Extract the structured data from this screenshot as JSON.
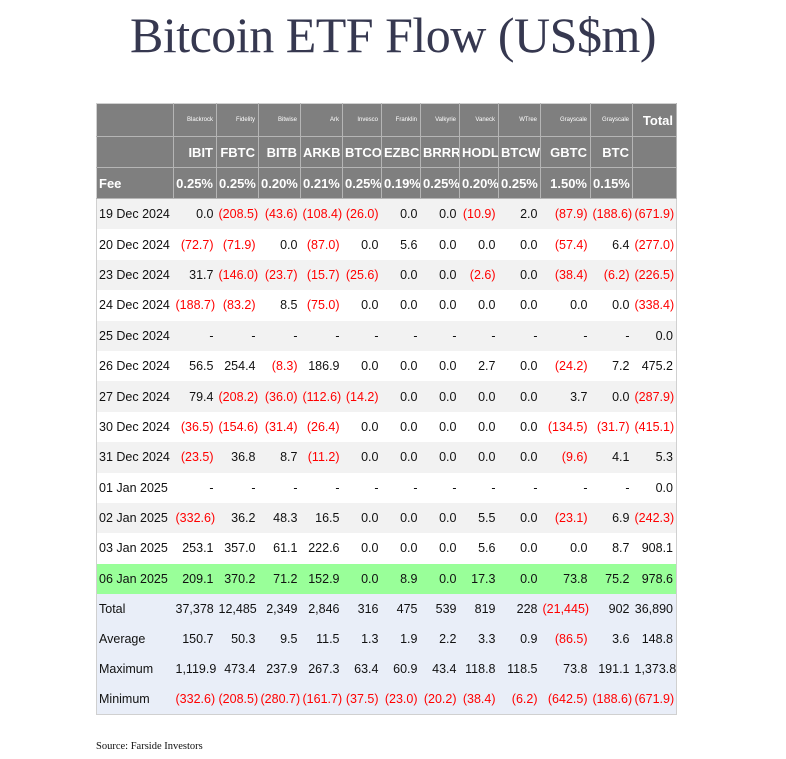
{
  "title": "Bitcoin ETF Flow (US$m)",
  "source": "Source: Farside Investors",
  "table": {
    "issuers": [
      "",
      "Blackrock",
      "Fidelity",
      "Bitwise",
      "Ark",
      "Invesco",
      "Franklin",
      "Valkyrie",
      "Vaneck",
      "WTree",
      "Grayscale",
      "Grayscale",
      "Total"
    ],
    "tickers": [
      "",
      "IBIT",
      "FBTC",
      "BITB",
      "ARKB",
      "BTCO",
      "EZBC",
      "BRRR",
      "HODL",
      "BTCW",
      "GBTC",
      "BTC",
      ""
    ],
    "fees": [
      "Fee",
      "0.25%",
      "0.25%",
      "0.20%",
      "0.21%",
      "0.25%",
      "0.19%",
      "0.25%",
      "0.20%",
      "0.25%",
      "1.50%",
      "0.15%",
      ""
    ],
    "rows": [
      [
        "19 Dec 2024",
        "0.0",
        "(208.5)",
        "(43.6)",
        "(108.4)",
        "(26.0)",
        "0.0",
        "0.0",
        "(10.9)",
        "2.0",
        "(87.9)",
        "(188.6)",
        "(671.9)"
      ],
      [
        "20 Dec 2024",
        "(72.7)",
        "(71.9)",
        "0.0",
        "(87.0)",
        "0.0",
        "5.6",
        "0.0",
        "0.0",
        "0.0",
        "(57.4)",
        "6.4",
        "(277.0)"
      ],
      [
        "23 Dec 2024",
        "31.7",
        "(146.0)",
        "(23.7)",
        "(15.7)",
        "(25.6)",
        "0.0",
        "0.0",
        "(2.6)",
        "0.0",
        "(38.4)",
        "(6.2)",
        "(226.5)"
      ],
      [
        "24 Dec 2024",
        "(188.7)",
        "(83.2)",
        "8.5",
        "(75.0)",
        "0.0",
        "0.0",
        "0.0",
        "0.0",
        "0.0",
        "0.0",
        "0.0",
        "(338.4)"
      ],
      [
        "25 Dec 2024",
        "-",
        "-",
        "-",
        "-",
        "-",
        "-",
        "-",
        "-",
        "-",
        "-",
        "-",
        "0.0"
      ],
      [
        "26 Dec 2024",
        "56.5",
        "254.4",
        "(8.3)",
        "186.9",
        "0.0",
        "0.0",
        "0.0",
        "2.7",
        "0.0",
        "(24.2)",
        "7.2",
        "475.2"
      ],
      [
        "27 Dec 2024",
        "79.4",
        "(208.2)",
        "(36.0)",
        "(112.6)",
        "(14.2)",
        "0.0",
        "0.0",
        "0.0",
        "0.0",
        "3.7",
        "0.0",
        "(287.9)"
      ],
      [
        "30 Dec 2024",
        "(36.5)",
        "(154.6)",
        "(31.4)",
        "(26.4)",
        "0.0",
        "0.0",
        "0.0",
        "0.0",
        "0.0",
        "(134.5)",
        "(31.7)",
        "(415.1)"
      ],
      [
        "31 Dec 2024",
        "(23.5)",
        "36.8",
        "8.7",
        "(11.2)",
        "0.0",
        "0.0",
        "0.0",
        "0.0",
        "0.0",
        "(9.6)",
        "4.1",
        "5.3"
      ],
      [
        "01 Jan 2025",
        "-",
        "-",
        "-",
        "-",
        "-",
        "-",
        "-",
        "-",
        "-",
        "-",
        "-",
        "0.0"
      ],
      [
        "02 Jan 2025",
        "(332.6)",
        "36.2",
        "48.3",
        "16.5",
        "0.0",
        "0.0",
        "0.0",
        "5.5",
        "0.0",
        "(23.1)",
        "6.9",
        "(242.3)"
      ],
      [
        "03 Jan 2025",
        "253.1",
        "357.0",
        "61.1",
        "222.6",
        "0.0",
        "0.0",
        "0.0",
        "5.6",
        "0.0",
        "0.0",
        "8.7",
        "908.1"
      ],
      [
        "06 Jan 2025",
        "209.1",
        "370.2",
        "71.2",
        "152.9",
        "0.0",
        "8.9",
        "0.0",
        "17.3",
        "0.0",
        "73.8",
        "75.2",
        "978.6"
      ]
    ],
    "highlight_row_index": 12,
    "highlight_color": "#99ff99",
    "negative_color": "#ff0000",
    "summary": [
      [
        "Total",
        "37,378",
        "12,485",
        "2,349",
        "2,846",
        "316",
        "475",
        "539",
        "819",
        "228",
        "(21,445)",
        "902",
        "36,890"
      ],
      [
        "Average",
        "150.7",
        "50.3",
        "9.5",
        "11.5",
        "1.3",
        "1.9",
        "2.2",
        "3.3",
        "0.9",
        "(86.5)",
        "3.6",
        "148.8"
      ],
      [
        "Maximum",
        "1,119.9",
        "473.4",
        "237.9",
        "267.3",
        "63.4",
        "60.9",
        "43.4",
        "118.8",
        "118.5",
        "73.8",
        "191.1",
        "1,373.8"
      ],
      [
        "Minimum",
        "(332.6)",
        "(208.5)",
        "(280.7)",
        "(161.7)",
        "(37.5)",
        "(23.0)",
        "(20.2)",
        "(38.4)",
        "(6.2)",
        "(642.5)",
        "(188.6)",
        "(671.9)"
      ]
    ]
  }
}
